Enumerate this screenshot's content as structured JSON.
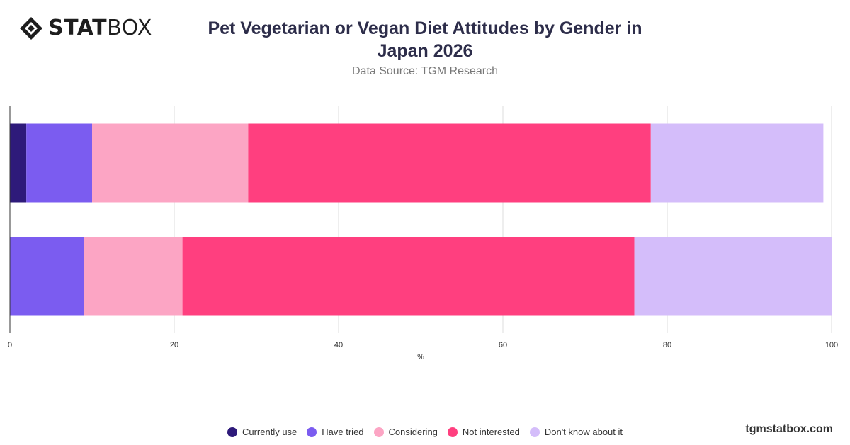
{
  "brand": {
    "bold": "STAT",
    "light": "BOX"
  },
  "header": {
    "title": "Pet Vegetarian or Vegan Diet Attitudes by Gender in Japan 2026",
    "subtitle": "Data Source: TGM Research"
  },
  "footer": {
    "site": "tgmstatbox.com"
  },
  "chart_data": {
    "type": "bar",
    "orientation": "horizontal",
    "stacked": true,
    "title": "Pet Vegetarian or Vegan Diet Attitudes by Gender in Japan 2026",
    "subtitle": "Data Source: TGM Research",
    "xlabel": "%",
    "ylabel": "",
    "xlim": [
      0,
      100
    ],
    "xticks": [
      "0",
      "20",
      "40",
      "60",
      "80",
      "100"
    ],
    "categories": [
      "",
      ""
    ],
    "grid": true,
    "legend_position": "bottom",
    "series": [
      {
        "name": "Currently use",
        "color": "#2e1a7a",
        "values": [
          2,
          0
        ]
      },
      {
        "name": "Have tried",
        "color": "#7b5cf0",
        "values": [
          8,
          9
        ]
      },
      {
        "name": "Considering",
        "color": "#fca5c4",
        "values": [
          19,
          12
        ]
      },
      {
        "name": "Not interested",
        "color": "#ff3f7f",
        "values": [
          49,
          55
        ]
      },
      {
        "name": "Don't know about it",
        "color": "#d4bdfa",
        "values": [
          21,
          24
        ]
      }
    ]
  }
}
